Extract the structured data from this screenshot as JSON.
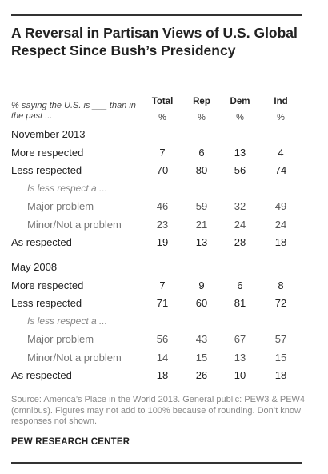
{
  "title": "A Reversal in Partisan Views of U.S. Global Respect Since Bush’s Presidency",
  "row_header": "% saying the U.S. is ___ than in the past ...",
  "columns": [
    {
      "name": "Total",
      "unit": "%"
    },
    {
      "name": "Rep",
      "unit": "%"
    },
    {
      "name": "Dem",
      "unit": "%"
    },
    {
      "name": "Ind",
      "unit": "%"
    }
  ],
  "sections": [
    {
      "label": "November 2013",
      "rows": [
        {
          "label": "More respected",
          "kind": "main",
          "values": [
            7,
            6,
            13,
            4
          ]
        },
        {
          "label": "Less respected",
          "kind": "main",
          "values": [
            70,
            80,
            56,
            74
          ]
        },
        {
          "label": "Is less respect a ...",
          "kind": "note",
          "values": []
        },
        {
          "label": "Major problem",
          "kind": "sub",
          "values": [
            46,
            59,
            32,
            49
          ]
        },
        {
          "label": "Minor/Not a problem",
          "kind": "sub",
          "values": [
            23,
            21,
            24,
            24
          ]
        },
        {
          "label": "As respected",
          "kind": "main",
          "values": [
            19,
            13,
            28,
            18
          ]
        }
      ]
    },
    {
      "label": "May 2008",
      "rows": [
        {
          "label": "More respected",
          "kind": "main",
          "values": [
            7,
            9,
            6,
            8
          ]
        },
        {
          "label": "Less respected",
          "kind": "main",
          "values": [
            71,
            60,
            81,
            72
          ]
        },
        {
          "label": "Is less respect a ...",
          "kind": "note",
          "values": []
        },
        {
          "label": "Major problem",
          "kind": "sub",
          "values": [
            56,
            43,
            67,
            57
          ]
        },
        {
          "label": "Minor/Not a problem",
          "kind": "sub",
          "values": [
            14,
            15,
            13,
            15
          ]
        },
        {
          "label": "As respected",
          "kind": "main",
          "values": [
            18,
            26,
            10,
            18
          ]
        }
      ]
    }
  ],
  "source": "Source: America’s Place in the World 2013. General public: PEW3 & PEW4 (omnibus). Figures may not add to 100% because of rounding. Don’t know responses not shown.",
  "organization": "PEW RESEARCH CENTER",
  "chart_data": {
    "type": "table",
    "title": "A Reversal in Partisan Views of U.S. Global Respect Since Bush’s Presidency",
    "columns": [
      "Total",
      "Rep",
      "Dem",
      "Ind"
    ],
    "unit": "%",
    "rows": [
      {
        "group": "November 2013",
        "label": "More respected",
        "values": [
          7,
          6,
          13,
          4
        ]
      },
      {
        "group": "November 2013",
        "label": "Less respected",
        "values": [
          70,
          80,
          56,
          74
        ]
      },
      {
        "group": "November 2013",
        "label": "Major problem",
        "values": [
          46,
          59,
          32,
          49
        ]
      },
      {
        "group": "November 2013",
        "label": "Minor/Not a problem",
        "values": [
          23,
          21,
          24,
          24
        ]
      },
      {
        "group": "November 2013",
        "label": "As respected",
        "values": [
          19,
          13,
          28,
          18
        ]
      },
      {
        "group": "May 2008",
        "label": "More respected",
        "values": [
          7,
          9,
          6,
          8
        ]
      },
      {
        "group": "May 2008",
        "label": "Less respected",
        "values": [
          71,
          60,
          81,
          72
        ]
      },
      {
        "group": "May 2008",
        "label": "Major problem",
        "values": [
          56,
          43,
          67,
          57
        ]
      },
      {
        "group": "May 2008",
        "label": "Minor/Not a problem",
        "values": [
          14,
          15,
          13,
          15
        ]
      },
      {
        "group": "May 2008",
        "label": "As respected",
        "values": [
          18,
          26,
          10,
          18
        ]
      }
    ]
  }
}
